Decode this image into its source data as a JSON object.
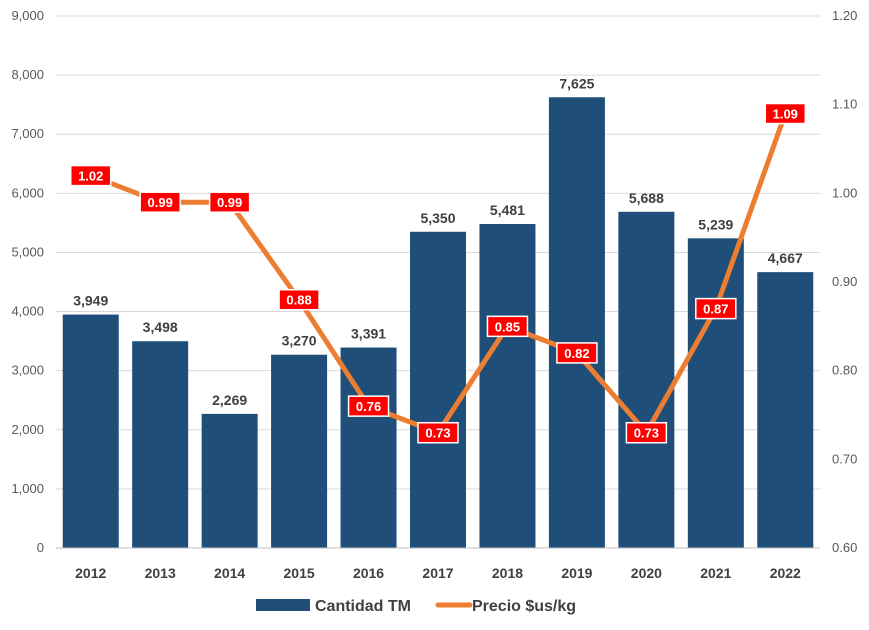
{
  "chart_data": {
    "type": "bar",
    "categories": [
      "2012",
      "2013",
      "2014",
      "2015",
      "2016",
      "2017",
      "2018",
      "2019",
      "2020",
      "2021",
      "2022"
    ],
    "series": [
      {
        "name": "Cantidad TM",
        "type": "bar",
        "axis": "left",
        "values": [
          3949,
          3498,
          2269,
          3270,
          3391,
          5350,
          5481,
          7625,
          5688,
          5239,
          4667
        ],
        "labels": [
          "3,949",
          "3,498",
          "2,269",
          "3,270",
          "3,391",
          "5,350",
          "5,481",
          "7,625",
          "5,688",
          "5,239",
          "4,667"
        ],
        "color": "#1F4E79"
      },
      {
        "name": "Precio $us/kg",
        "type": "line",
        "axis": "right",
        "values": [
          1.02,
          0.99,
          0.99,
          0.88,
          0.76,
          0.73,
          0.85,
          0.82,
          0.73,
          0.87,
          1.09
        ],
        "labels": [
          "1.02",
          "0.99",
          "0.99",
          "0.88",
          "0.76",
          "0.73",
          "0.85",
          "0.82",
          "0.73",
          "0.87",
          "1.09"
        ],
        "color": "#ED7D31",
        "label_bg": "#FF0000"
      }
    ],
    "y_left": {
      "range": [
        0,
        9000
      ],
      "ticks": [
        0,
        1000,
        2000,
        3000,
        4000,
        5000,
        6000,
        7000,
        8000,
        9000
      ],
      "tick_labels": [
        "0",
        "1,000",
        "2,000",
        "3,000",
        "4,000",
        "5,000",
        "6,000",
        "7,000",
        "8,000",
        "9,000"
      ]
    },
    "y_right": {
      "range": [
        0.6,
        1.2
      ],
      "ticks": [
        0.6,
        0.7,
        0.8,
        0.9,
        1.0,
        1.1,
        1.2
      ],
      "tick_labels": [
        "0.60",
        "0.70",
        "0.80",
        "0.90",
        "1.00",
        "1.10",
        "1.20"
      ]
    },
    "grid": true,
    "legend": {
      "position": "bottom",
      "entries": [
        "Cantidad TM",
        "Precio $us/kg"
      ]
    },
    "title": "",
    "xlabel": "",
    "ylabel": ""
  }
}
